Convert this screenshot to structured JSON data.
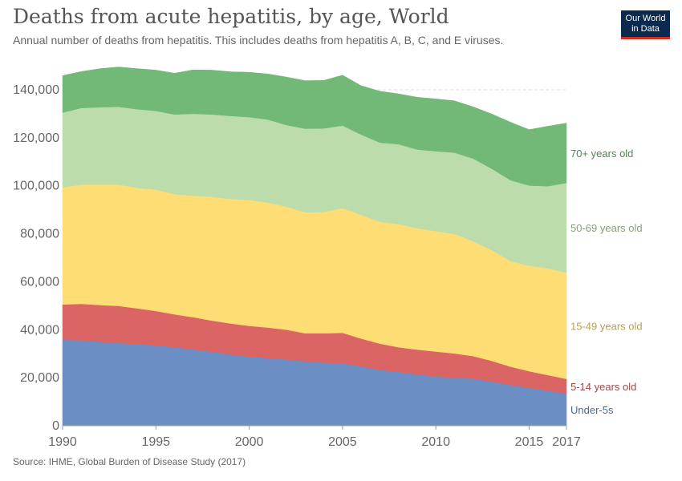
{
  "header": {
    "title": "Deaths from acute hepatitis, by age, World",
    "subtitle": "Annual number of deaths from hepatitis. This includes deaths from hepatitis A, B, C, and E viruses."
  },
  "logo": {
    "line1": "Our World",
    "line2": "in Data",
    "bg": "#0c2a4d",
    "accent": "#d42b21"
  },
  "footer": {
    "source": "Source: IHME, Global Burden of Disease Study (2017)"
  },
  "chart_data": {
    "type": "area",
    "stacked": true,
    "title": "Deaths from acute hepatitis, by age, World",
    "subtitle": "Annual number of deaths from hepatitis. This includes deaths from hepatitis A, B, C, and E viruses.",
    "xlim": [
      1990,
      2017
    ],
    "ylim": [
      0,
      145000
    ],
    "grid": "horizontal-dashed",
    "legend": "right-inline",
    "x_ticks": [
      1990,
      1995,
      2000,
      2005,
      2010,
      2015,
      2017
    ],
    "y_ticks": [
      0,
      20000,
      40000,
      60000,
      80000,
      100000,
      120000,
      140000
    ],
    "y_tick_labels": [
      "0",
      "20,000",
      "40,000",
      "60,000",
      "80,000",
      "100,000",
      "120,000",
      "140,000"
    ],
    "x": [
      1990,
      1991,
      1992,
      1993,
      1994,
      1995,
      1996,
      1997,
      1998,
      1999,
      2000,
      2001,
      2002,
      2003,
      2004,
      2005,
      2006,
      2007,
      2008,
      2009,
      2010,
      2011,
      2012,
      2013,
      2014,
      2015,
      2016,
      2017
    ],
    "series": [
      {
        "name": "Under-5s",
        "color": "#6b8ec4",
        "values": [
          35800,
          35600,
          35000,
          34500,
          34000,
          33500,
          32700,
          31800,
          30800,
          29700,
          28800,
          28200,
          27600,
          26900,
          26300,
          26000,
          24700,
          23300,
          22400,
          21400,
          20500,
          20000,
          19600,
          18400,
          17000,
          15800,
          14600,
          13400
        ]
      },
      {
        "name": "5-14 years old",
        "color": "#db6464",
        "values": [
          14700,
          15200,
          15300,
          15400,
          14900,
          14300,
          13700,
          13400,
          13000,
          12900,
          12800,
          12700,
          12400,
          11600,
          12200,
          12700,
          11600,
          10900,
          10300,
          10300,
          10400,
          10100,
          9400,
          8600,
          7600,
          6900,
          6500,
          6100
        ]
      },
      {
        "name": "15-49 years old",
        "color": "#fede74",
        "values": [
          48800,
          49700,
          50200,
          50600,
          50200,
          50600,
          50100,
          50700,
          51600,
          51900,
          52500,
          52100,
          51300,
          50400,
          50600,
          52000,
          51600,
          50800,
          51300,
          50600,
          50200,
          49800,
          47900,
          46200,
          44000,
          44000,
          44500,
          44300
        ]
      },
      {
        "name": "50-69 years old",
        "color": "#bcdcab",
        "values": [
          31200,
          31900,
          32200,
          32400,
          32800,
          32800,
          33200,
          34100,
          34300,
          34600,
          34500,
          34600,
          34000,
          34900,
          34800,
          34400,
          33400,
          33000,
          33300,
          32800,
          33300,
          33900,
          34400,
          33900,
          33700,
          33400,
          34200,
          37400
        ]
      },
      {
        "name": "70+ years old",
        "color": "#72b876",
        "values": [
          15400,
          15200,
          16100,
          16600,
          16900,
          17000,
          17200,
          18300,
          18500,
          18400,
          18700,
          19000,
          20000,
          20000,
          20000,
          21000,
          20400,
          21400,
          21000,
          21800,
          21800,
          21600,
          21600,
          22800,
          24200,
          23300,
          25000,
          24900
        ]
      }
    ]
  }
}
